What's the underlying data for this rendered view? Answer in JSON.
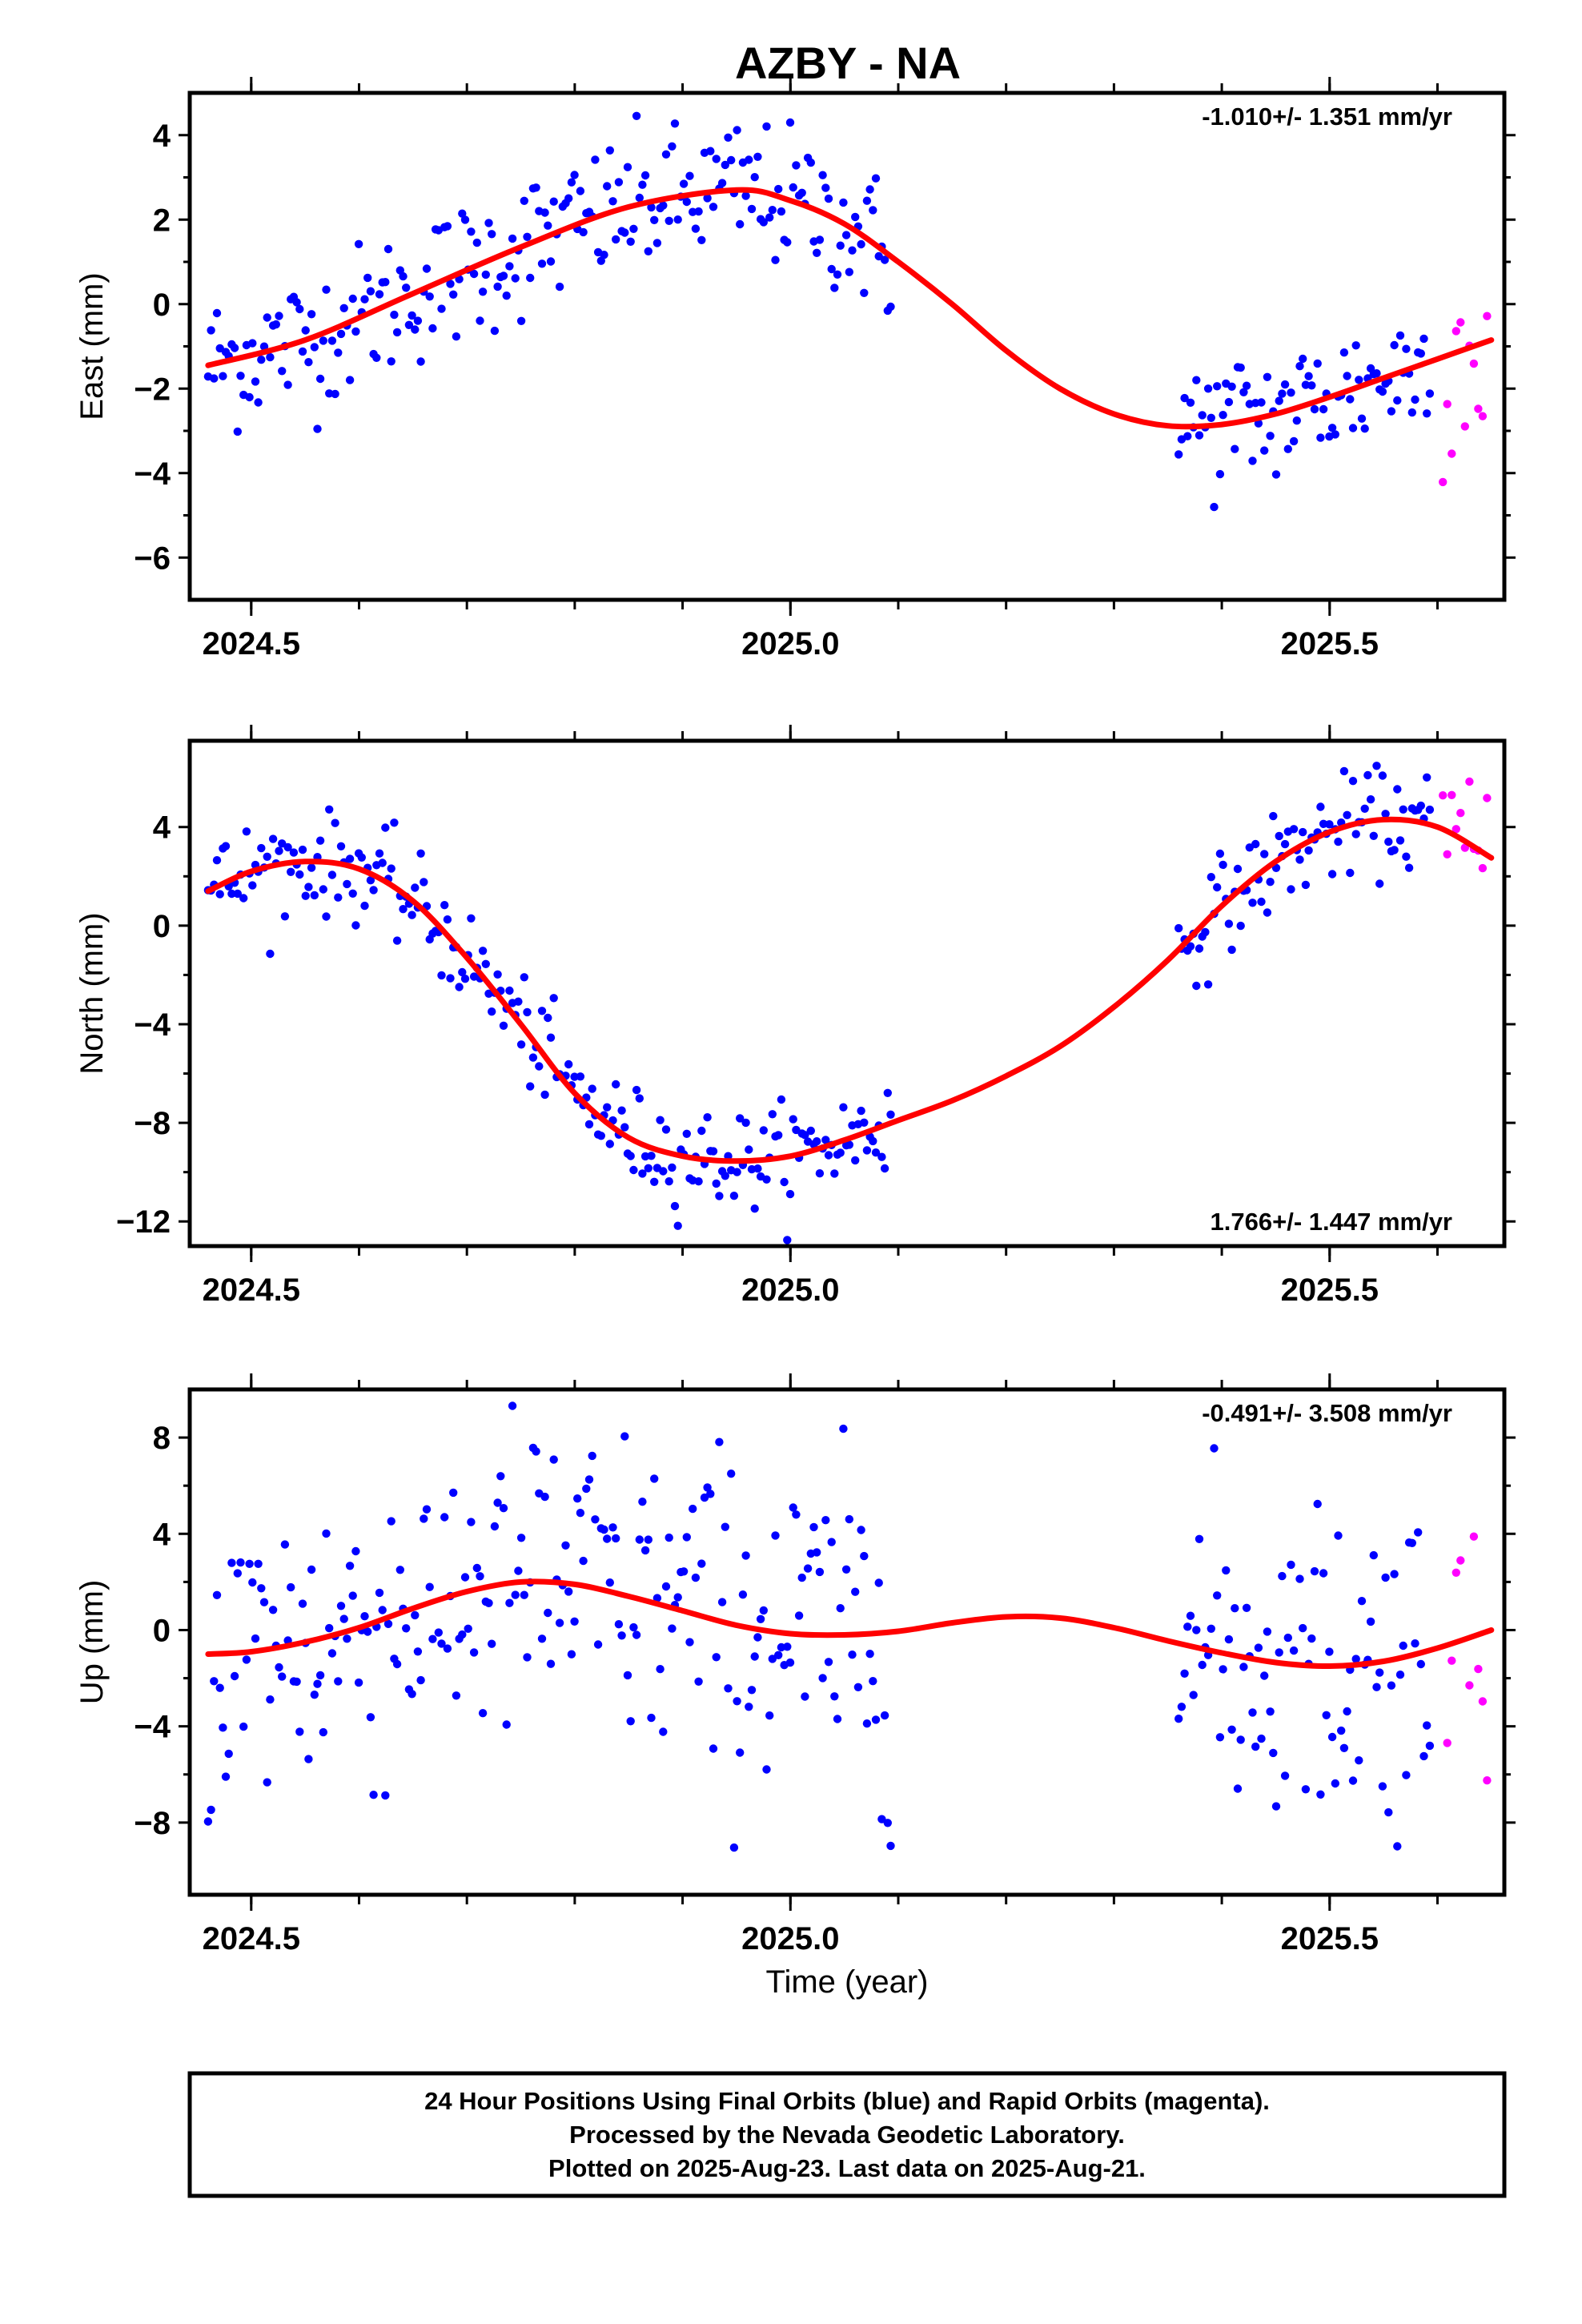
{
  "title": "AZBY - NA",
  "xlabel": "Time (year)",
  "footer": [
    "24 Hour Positions Using Final Orbits (blue) and Rapid Orbits (magenta).",
    "Processed by the Nevada Geodetic Laboratory.",
    "Plotted on 2025-Aug-23. Last data on 2025-Aug-21."
  ],
  "colors": {
    "final": "#0000ff",
    "rapid": "#ff00ff",
    "model": "#ff0000",
    "frame": "#000000"
  },
  "chart_data": [
    {
      "type": "scatter",
      "name": "east",
      "ylabel": "East (mm)",
      "rate": "-1.010+/- 1.351 mm/yr",
      "rate_position": "top-right",
      "xlim": [
        2024.443,
        2025.662
      ],
      "ylim": [
        -7.0,
        5.0
      ],
      "yticks": [
        4,
        2,
        0,
        -2,
        -4,
        -6
      ],
      "xticks": [
        2024.5,
        2025.0,
        2025.5
      ],
      "final_span": [
        [
          2024.46,
          2025.095
        ],
        [
          2025.36,
          2025.595
        ]
      ],
      "rapid_x": [
        2025.605,
        2025.65
      ],
      "model": [
        [
          2024.46,
          -1.45
        ],
        [
          2024.55,
          -0.85
        ],
        [
          2024.65,
          0.25
        ],
        [
          2024.75,
          1.35
        ],
        [
          2024.85,
          2.3
        ],
        [
          2024.95,
          2.7
        ],
        [
          2025.0,
          2.45
        ],
        [
          2025.05,
          1.9
        ],
        [
          2025.1,
          1.0
        ],
        [
          2025.15,
          0.0
        ],
        [
          2025.2,
          -1.1
        ],
        [
          2025.25,
          -2.0
        ],
        [
          2025.3,
          -2.6
        ],
        [
          2025.35,
          -2.88
        ],
        [
          2025.4,
          -2.85
        ],
        [
          2025.45,
          -2.6
        ],
        [
          2025.5,
          -2.2
        ],
        [
          2025.55,
          -1.75
        ],
        [
          2025.6,
          -1.3
        ],
        [
          2025.65,
          -0.85
        ]
      ],
      "scatter_sigma": 0.85
    },
    {
      "type": "scatter",
      "name": "north",
      "ylabel": "North (mm)",
      "rate": "1.766+/- 1.447 mm/yr",
      "rate_position": "bottom-right",
      "xlim": [
        2024.443,
        2025.662
      ],
      "ylim": [
        -13.0,
        7.5
      ],
      "yticks": [
        4,
        0,
        -4,
        -8,
        -12
      ],
      "xticks": [
        2024.5,
        2025.0,
        2025.5
      ],
      "final_span": [
        [
          2024.46,
          2025.095
        ],
        [
          2025.36,
          2025.595
        ]
      ],
      "rapid_x": [
        2025.605,
        2025.65
      ],
      "model": [
        [
          2024.46,
          1.4
        ],
        [
          2024.5,
          2.2
        ],
        [
          2024.55,
          2.6
        ],
        [
          2024.6,
          2.3
        ],
        [
          2024.65,
          1.0
        ],
        [
          2024.7,
          -1.3
        ],
        [
          2024.75,
          -4.0
        ],
        [
          2024.8,
          -6.8
        ],
        [
          2024.85,
          -8.6
        ],
        [
          2024.9,
          -9.35
        ],
        [
          2024.95,
          -9.55
        ],
        [
          2025.0,
          -9.35
        ],
        [
          2025.05,
          -8.7
        ],
        [
          2025.1,
          -7.9
        ],
        [
          2025.15,
          -7.1
        ],
        [
          2025.2,
          -6.1
        ],
        [
          2025.25,
          -4.9
        ],
        [
          2025.3,
          -3.3
        ],
        [
          2025.35,
          -1.4
        ],
        [
          2025.4,
          0.8
        ],
        [
          2025.45,
          2.6
        ],
        [
          2025.5,
          3.8
        ],
        [
          2025.55,
          4.3
        ],
        [
          2025.6,
          4.0
        ],
        [
          2025.65,
          2.75
        ]
      ],
      "scatter_sigma": 1.0
    },
    {
      "type": "scatter",
      "name": "up",
      "ylabel": "Up (mm)",
      "rate": "-0.491+/- 3.508 mm/yr",
      "rate_position": "top-right",
      "xlim": [
        2024.443,
        2025.662
      ],
      "ylim": [
        -11.0,
        10.0
      ],
      "yticks": [
        8,
        4,
        0,
        -4,
        -8
      ],
      "xticks": [
        2024.5,
        2025.0,
        2025.5
      ],
      "final_span": [
        [
          2024.46,
          2025.095
        ],
        [
          2025.36,
          2025.595
        ]
      ],
      "rapid_x": [
        2025.605,
        2025.65
      ],
      "model": [
        [
          2024.46,
          -1.0
        ],
        [
          2024.5,
          -0.9
        ],
        [
          2024.55,
          -0.5
        ],
        [
          2024.6,
          0.1
        ],
        [
          2024.65,
          0.9
        ],
        [
          2024.7,
          1.6
        ],
        [
          2024.75,
          2.0
        ],
        [
          2024.8,
          1.9
        ],
        [
          2024.85,
          1.4
        ],
        [
          2024.9,
          0.8
        ],
        [
          2024.95,
          0.2
        ],
        [
          2025.0,
          -0.15
        ],
        [
          2025.05,
          -0.2
        ],
        [
          2025.1,
          -0.05
        ],
        [
          2025.15,
          0.3
        ],
        [
          2025.2,
          0.55
        ],
        [
          2025.25,
          0.5
        ],
        [
          2025.3,
          0.1
        ],
        [
          2025.35,
          -0.45
        ],
        [
          2025.4,
          -0.95
        ],
        [
          2025.45,
          -1.35
        ],
        [
          2025.5,
          -1.5
        ],
        [
          2025.55,
          -1.3
        ],
        [
          2025.6,
          -0.75
        ],
        [
          2025.65,
          0.0
        ]
      ],
      "scatter_sigma": 3.5
    }
  ]
}
